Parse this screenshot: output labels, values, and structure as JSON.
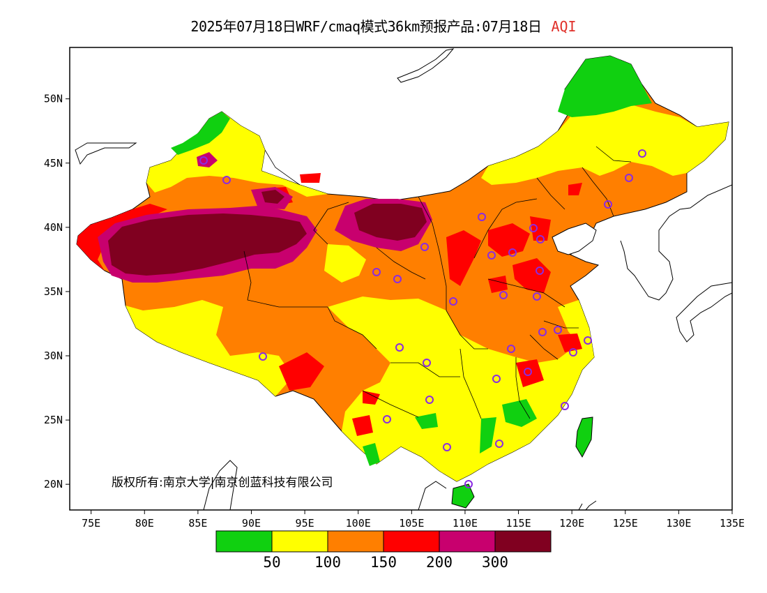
{
  "title": {
    "main": "2025年07月18日WRF/cmaq模式36km预报产品:07月18日",
    "variable": "AQI"
  },
  "axes": {
    "lon_ticks": [
      "75E",
      "80E",
      "85E",
      "90E",
      "95E",
      "100E",
      "105E",
      "110E",
      "115E",
      "120E",
      "125E",
      "130E",
      "135E"
    ],
    "lat_ticks": [
      "50N",
      "45N",
      "40N",
      "35N",
      "30N",
      "25N",
      "20N"
    ],
    "lon_range": [
      73,
      135
    ],
    "lat_range": [
      18,
      54
    ]
  },
  "colorbar": {
    "colors": [
      "#10d010",
      "#ffff00",
      "#ff7f00",
      "#ff0000",
      "#c8006e",
      "#800020"
    ],
    "labels": [
      "50",
      "100",
      "150",
      "200",
      "300"
    ]
  },
  "copyright": "版权所有:南京大学|南京创蓝科技有限公司",
  "stations_count": 31
}
